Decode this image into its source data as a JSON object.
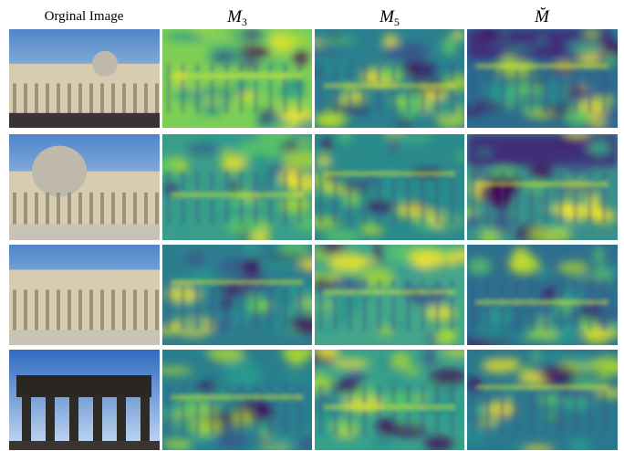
{
  "header": {
    "columns": [
      {
        "label": "Orginal Image"
      },
      {
        "symbol": "M",
        "subscript": "3"
      },
      {
        "symbol": "M",
        "subscript": "5"
      },
      {
        "symbol": "M̆"
      }
    ]
  }
}
